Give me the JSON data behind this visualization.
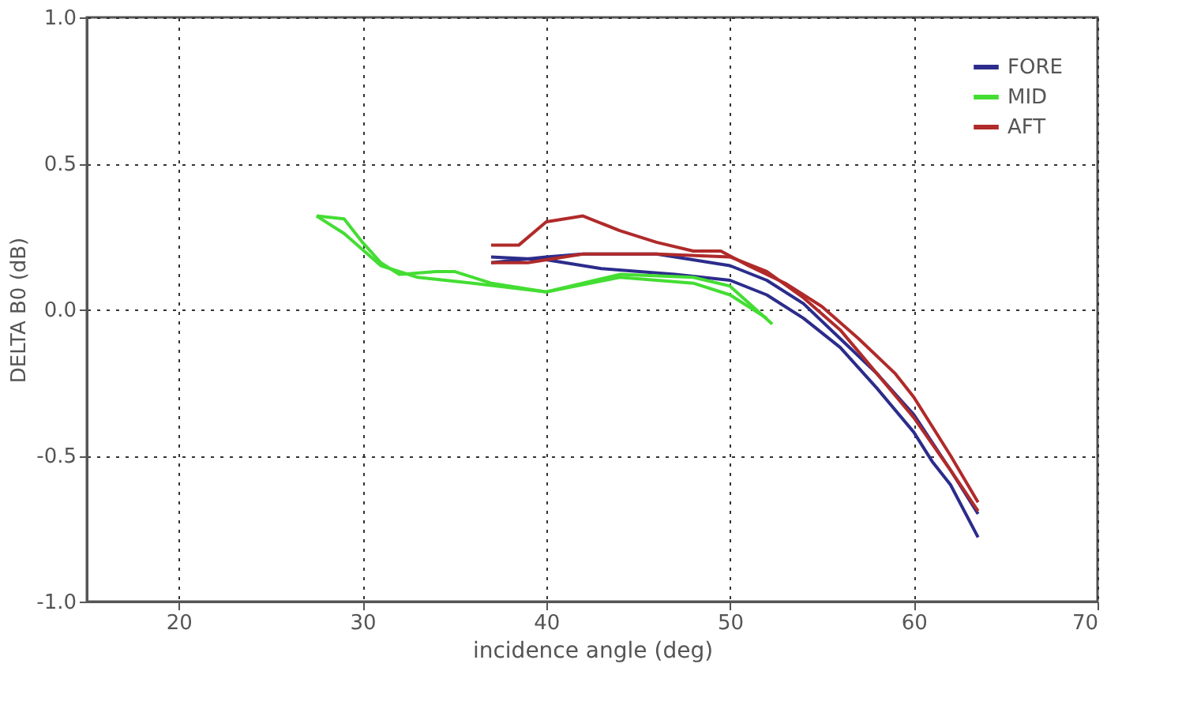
{
  "chart_data": {
    "type": "line",
    "xlabel": "incidence angle (deg)",
    "ylabel": "DELTA B0 (dB)",
    "xlim": [
      15,
      70
    ],
    "xticks": [
      20,
      30,
      40,
      50,
      60,
      70
    ],
    "ylim": [
      -1.0,
      1.0
    ],
    "yticks": [
      {
        "value": -1.0,
        "label": "-1.0"
      },
      {
        "value": -0.5,
        "label": "-0.5"
      },
      {
        "value": 0,
        "label": "0.0"
      },
      {
        "value": 0.5,
        "label": "0.5"
      },
      {
        "value": 1.0,
        "label": "1.0"
      }
    ],
    "grid": true,
    "legend": "top right",
    "marker": "none",
    "line_style": "solid",
    "series": [
      {
        "name": "FORE",
        "color": "#2c2c8c",
        "x": [
          37,
          40,
          43,
          47,
          50,
          52,
          54,
          56,
          58,
          60,
          61,
          62,
          63.5
        ],
        "values": [
          0.18,
          0.17,
          0.14,
          0.12,
          0.1,
          0.05,
          -0.03,
          -0.13,
          -0.27,
          -0.42,
          -0.52,
          -0.6,
          -0.78
        ]
      },
      {
        "color": "#2c2c8c",
        "x": [
          37,
          40,
          42,
          46,
          50,
          52,
          54,
          56,
          58,
          60,
          62,
          63.5
        ],
        "values": [
          0.16,
          0.18,
          0.19,
          0.19,
          0.15,
          0.1,
          0.02,
          -0.1,
          -0.22,
          -0.36,
          -0.55,
          -0.7
        ]
      },
      {
        "name": "MID",
        "color": "#44dd33",
        "x": [
          27.5,
          29,
          30,
          31,
          32,
          34,
          35,
          37,
          40,
          44,
          48,
          50,
          52
        ],
        "values": [
          0.32,
          0.31,
          0.23,
          0.16,
          0.12,
          0.13,
          0.13,
          0.09,
          0.06,
          0.11,
          0.09,
          0.05,
          -0.03
        ]
      },
      {
        "color": "#44dd33",
        "x": [
          27.5,
          29,
          31,
          33,
          36,
          40,
          44,
          48,
          50,
          52.3
        ],
        "values": [
          0.32,
          0.26,
          0.15,
          0.11,
          0.09,
          0.06,
          0.12,
          0.11,
          0.08,
          -0.05
        ]
      },
      {
        "name": "AFT",
        "color": "#b02a2a",
        "x": [
          37,
          38.5,
          40,
          42,
          44,
          46,
          48,
          49.5,
          51,
          53,
          55,
          57,
          59,
          60,
          62,
          63.5
        ],
        "values": [
          0.22,
          0.22,
          0.3,
          0.32,
          0.27,
          0.23,
          0.2,
          0.2,
          0.15,
          0.09,
          0.01,
          -0.1,
          -0.22,
          -0.3,
          -0.5,
          -0.66
        ]
      },
      {
        "color": "#b02a2a",
        "x": [
          37,
          39,
          42,
          46,
          50,
          52,
          54,
          56,
          58,
          60,
          62,
          63.5
        ],
        "values": [
          0.16,
          0.16,
          0.19,
          0.19,
          0.18,
          0.13,
          0.04,
          -0.07,
          -0.22,
          -0.37,
          -0.55,
          -0.69
        ]
      }
    ]
  }
}
